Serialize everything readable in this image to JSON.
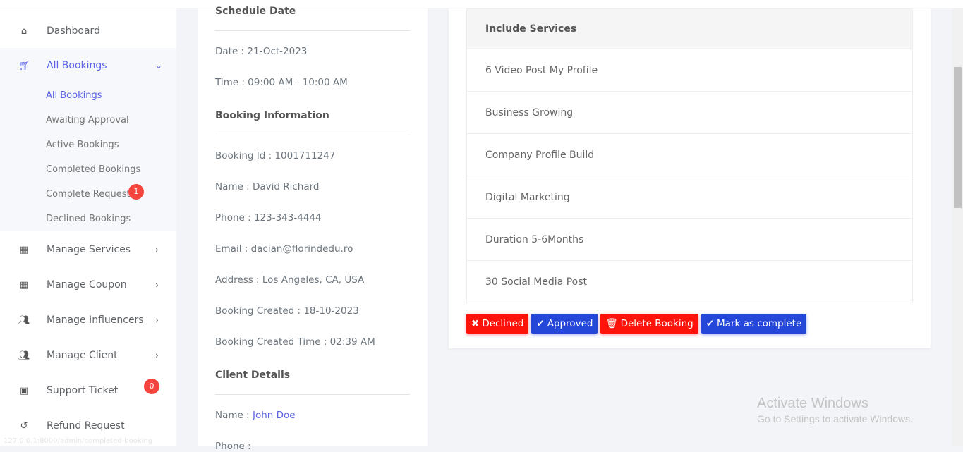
{
  "sidebar": {
    "dashboard": "Dashboard",
    "all_bookings": "All Bookings",
    "sub": [
      "All Bookings",
      "Awaiting Approval",
      "Active Bookings",
      "Completed Bookings",
      "Complete Request",
      "Declined Bookings"
    ],
    "complete_request_badge": "1",
    "manage_services": "Manage Services",
    "manage_coupon": "Manage Coupon",
    "manage_influencers": "Manage Influencers",
    "manage_client": "Manage Client",
    "support_ticket": "Support Ticket",
    "support_badge": "0",
    "refund_request": "Refund Request"
  },
  "details": {
    "schedule_title": "Schedule Date",
    "date": "Date : 21-Oct-2023",
    "time": "Time : 09:00 AM - 10:00 AM",
    "booking_title": "Booking Information",
    "booking_id": "Booking Id : 1001711247",
    "name": "Name : David Richard",
    "phone": "Phone : 123-343-4444",
    "email": "Email : dacian@florindedu.ro",
    "address": "Address : Los Angeles, CA, USA",
    "created": "Booking Created : 18-10-2023",
    "created_time": "Booking Created Time : 02:39 AM",
    "client_title": "Client Details",
    "client_name_label": "Name : ",
    "client_name": "John Doe",
    "client_phone": "Phone :"
  },
  "services": {
    "header": "Include Services",
    "items": [
      "6 Video Post My Profile",
      "Business Growing",
      "Company Profile Build",
      "Digital Marketing",
      "Duration 5-6Months",
      "30 Social Media Post"
    ]
  },
  "actions": {
    "declined": "Declined",
    "approved": "Approved",
    "delete": "Delete Booking",
    "complete": "Mark as complete"
  },
  "colors": {
    "accent": "#5b63e8",
    "danger": "#fd1309",
    "primary": "#2447d9"
  },
  "watermark": {
    "title": "Activate Windows",
    "subtitle": "Go to Settings to activate Windows."
  },
  "status_url": "127.0.0.1:8000/admin/completed-booking"
}
